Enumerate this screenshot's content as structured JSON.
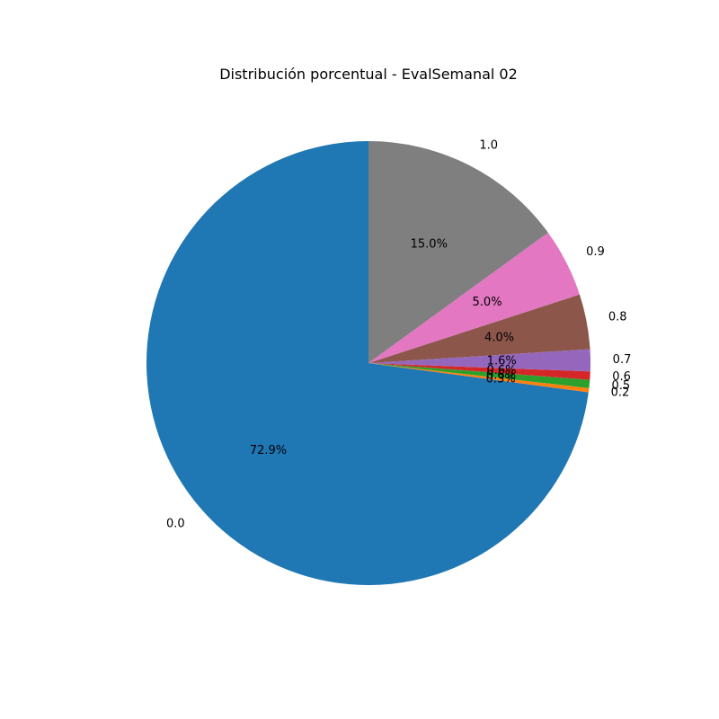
{
  "chart_data": {
    "type": "pie",
    "title": "Distribución porcentual - EvalSemanal 02",
    "categories": [
      "0.0",
      "0.2",
      "0.5",
      "0.6",
      "0.7",
      "0.8",
      "0.9",
      "1.0"
    ],
    "values": [
      72.9,
      0.3,
      0.6,
      0.6,
      1.6,
      4.0,
      5.0,
      15.0
    ],
    "percent_labels": [
      "72.9%",
      "0.3%",
      "0.6%",
      "0.6%",
      "1.6%",
      "4.0%",
      "5.0%",
      "15.0%"
    ],
    "colors": [
      "#1f77b4",
      "#ff7f0e",
      "#2ca02c",
      "#d62728",
      "#9467bd",
      "#8c564b",
      "#e377c2",
      "#7f7f7f"
    ],
    "start_angle_deg": 90,
    "direction": "counterclockwise",
    "legend": false
  }
}
